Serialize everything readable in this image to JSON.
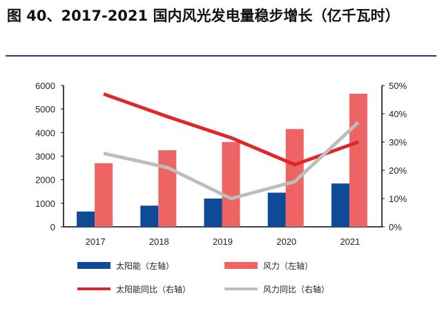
{
  "title": "图 40、2017-2021 国内风光发电量稳步增长（亿千瓦时）",
  "chart_data": {
    "type": "bar+line",
    "title": "图 40、2017-2021 国内风光发电量稳步增长（亿千瓦时）",
    "categories": [
      "2017",
      "2018",
      "2019",
      "2020",
      "2021"
    ],
    "left_axis": {
      "range": [
        0,
        6000
      ],
      "ticks": [
        "0",
        "1000",
        "2000",
        "3000",
        "4000",
        "5000",
        "6000"
      ]
    },
    "right_axis": {
      "range": [
        0,
        50
      ],
      "ticks": [
        "0%",
        "10%",
        "20%",
        "30%",
        "40%",
        "50%"
      ]
    },
    "series": [
      {
        "name": "太阳能（左轴）",
        "type": "bar",
        "axis": "left",
        "color": "#0e4a96",
        "values": [
          650,
          900,
          1200,
          1450,
          1840
        ]
      },
      {
        "name": "风力（左轴）",
        "type": "bar",
        "axis": "left",
        "color": "#ee6363",
        "values": [
          2700,
          3250,
          3600,
          4150,
          5650
        ]
      },
      {
        "name": "太阳能同比（右轴）",
        "type": "line",
        "axis": "right",
        "color": "#e0262b",
        "values": [
          47,
          39,
          31.5,
          22,
          30
        ]
      },
      {
        "name": "风力同比（右轴）",
        "type": "line",
        "axis": "right",
        "color": "#bdbdbd",
        "values": [
          26,
          21,
          10,
          16,
          37
        ]
      }
    ],
    "legend": "bottom"
  }
}
